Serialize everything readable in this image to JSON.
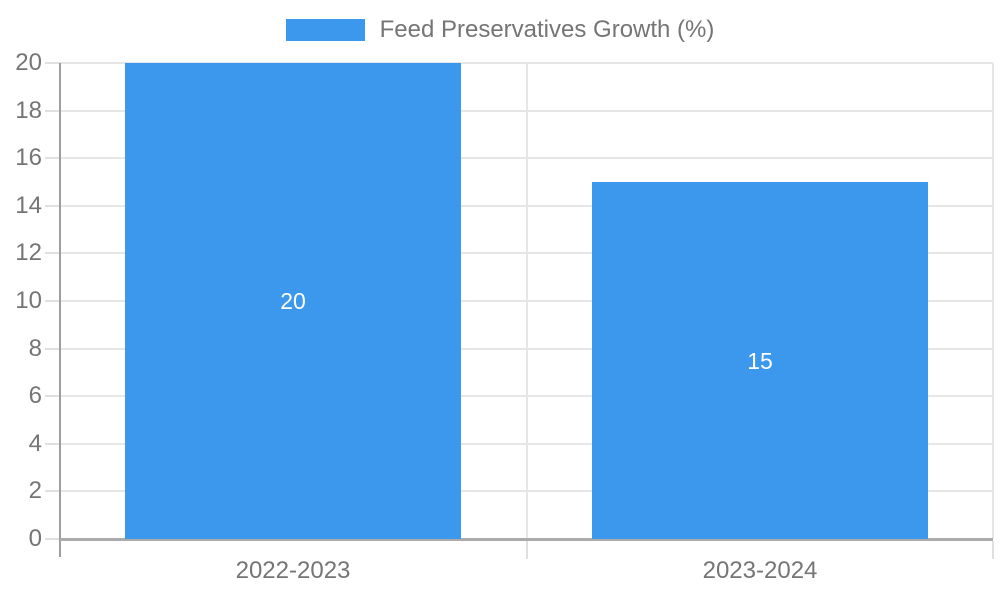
{
  "chart_data": {
    "type": "bar",
    "categories": [
      "2022-2023",
      "2023-2024"
    ],
    "values": [
      20,
      15
    ],
    "series_name": "Feed Preservatives Growth (%)",
    "title": "",
    "xlabel": "",
    "ylabel": "",
    "ylim": [
      0,
      20
    ],
    "yticks": [
      0,
      2,
      4,
      6,
      8,
      10,
      12,
      14,
      16,
      18,
      20
    ],
    "grid": true,
    "legend_position": "top-center",
    "bar_width_fraction": 0.72,
    "value_labels_position": "center-inside"
  },
  "colors": {
    "bar": "#3b98ec",
    "grid": "#e6e6e6",
    "tick_mark": "#e0e0e0",
    "y_axis_line": "#9e9e9e",
    "x_axis_line": "#ababab",
    "tick_text": "#757575",
    "legend_text": "#757575",
    "value_text": "#ffffff",
    "background": "#ffffff"
  }
}
